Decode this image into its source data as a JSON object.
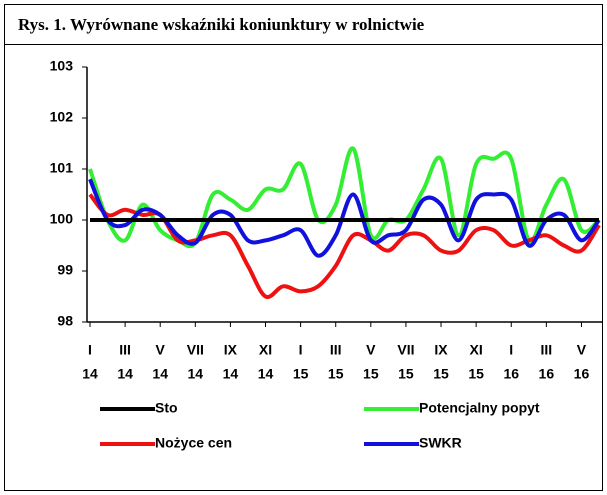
{
  "chart_data": {
    "type": "line",
    "title": "Rys. 1. Wyrównane wskaźniki koniunktury w rolnictwie",
    "categories": [
      "I",
      null,
      "III",
      null,
      "V",
      null,
      "VII",
      null,
      "IX",
      null,
      "XI",
      null,
      "I",
      null,
      "III",
      null,
      "V",
      null,
      "VII",
      null,
      "IX",
      null,
      "XI",
      null,
      "I",
      null,
      "III",
      null,
      "V",
      null
    ],
    "category_years": [
      "14",
      null,
      "14",
      null,
      "14",
      null,
      "14",
      null,
      "14",
      null,
      "14",
      null,
      "15",
      null,
      "15",
      null,
      "15",
      null,
      "15",
      null,
      "15",
      null,
      "15",
      null,
      "16",
      null,
      "16",
      null,
      "16",
      null
    ],
    "ylim": [
      98,
      103
    ],
    "yticks": [
      98,
      99,
      100,
      101,
      102,
      103
    ],
    "series": [
      {
        "name": "Sto",
        "color": "#000000",
        "values": [
          100,
          100,
          100,
          100,
          100,
          100,
          100,
          100,
          100,
          100,
          100,
          100,
          100,
          100,
          100,
          100,
          100,
          100,
          100,
          100,
          100,
          100,
          100,
          100,
          100,
          100,
          100,
          100,
          100,
          100
        ]
      },
      {
        "name": "Potencjalny popyt",
        "color": "#33ee33",
        "values": [
          101.0,
          100.0,
          99.6,
          100.3,
          99.8,
          99.6,
          99.55,
          100.5,
          100.4,
          100.2,
          100.6,
          100.6,
          101.1,
          100.0,
          100.3,
          101.4,
          99.7,
          100.0,
          100.0,
          100.6,
          101.2,
          99.7,
          101.1,
          101.2,
          101.2,
          99.6,
          100.3,
          100.8,
          99.8,
          100.0
        ]
      },
      {
        "name": "Nożyce cen",
        "color": "#ee1111",
        "values": [
          100.5,
          100.1,
          100.2,
          100.1,
          100.1,
          99.6,
          99.6,
          99.7,
          99.7,
          99.1,
          98.5,
          98.7,
          98.6,
          98.7,
          99.1,
          99.7,
          99.6,
          99.4,
          99.7,
          99.7,
          99.4,
          99.4,
          99.8,
          99.8,
          99.5,
          99.6,
          99.7,
          99.5,
          99.4,
          99.9
        ]
      },
      {
        "name": "SWKR",
        "color": "#1111dd",
        "values": [
          100.8,
          100.0,
          99.9,
          100.2,
          100.1,
          99.7,
          99.55,
          100.1,
          100.1,
          99.6,
          99.6,
          99.7,
          99.8,
          99.3,
          99.7,
          100.5,
          99.6,
          99.7,
          99.8,
          100.4,
          100.3,
          99.6,
          100.4,
          100.5,
          100.4,
          99.5,
          100.0,
          100.1,
          99.6,
          100.0
        ]
      }
    ]
  }
}
